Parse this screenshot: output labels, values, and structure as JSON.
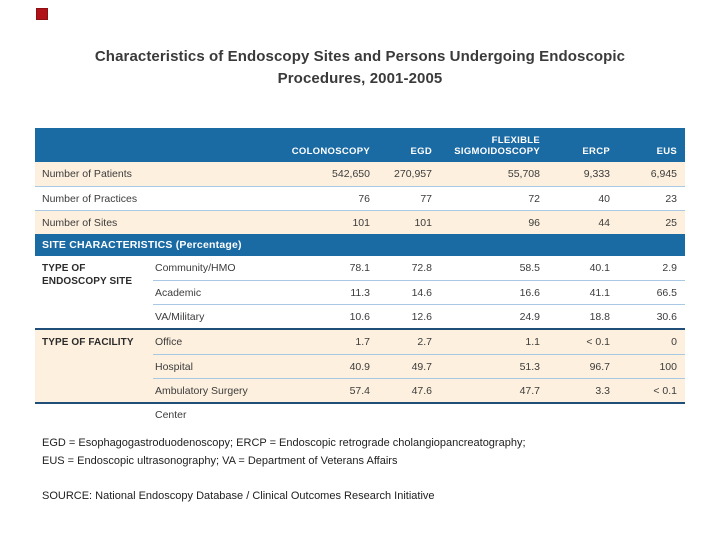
{
  "accent": {
    "color": "#b01218"
  },
  "title": {
    "line1": "Characteristics of Endoscopy Sites and Persons Undergoing Endoscopic",
    "line2": "Procedures, 2001-2005"
  },
  "table": {
    "columns": [
      "COLONOSCOPY",
      "EGD",
      "FLEXIBLE SIGMOIDOSCOPY",
      "ERCP",
      "EUS"
    ],
    "summary_rows": [
      {
        "label": "Number of Patients",
        "values": [
          "542,650",
          "270,957",
          "55,708",
          "9,333",
          "6,945"
        ]
      },
      {
        "label": "Number of Practices",
        "values": [
          "76",
          "77",
          "72",
          "40",
          "23"
        ]
      },
      {
        "label": "Number of Sites",
        "values": [
          "101",
          "101",
          "96",
          "44",
          "25"
        ]
      }
    ],
    "band_label": "SITE CHARACTERISTICS (Percentage)",
    "groups": [
      {
        "label": "TYPE OF ENDOSCOPY SITE",
        "rows": [
          {
            "label": "Community/HMO",
            "values": [
              "78.1",
              "72.8",
              "58.5",
              "40.1",
              "2.9"
            ]
          },
          {
            "label": "Academic",
            "values": [
              "11.3",
              "14.6",
              "16.6",
              "41.1",
              "66.5"
            ]
          },
          {
            "label": "VA/Military",
            "values": [
              "10.6",
              "12.6",
              "24.9",
              "18.8",
              "30.6"
            ]
          }
        ]
      },
      {
        "label": "TYPE OF FACILITY",
        "rows": [
          {
            "label": "Office",
            "values": [
              "1.7",
              "2.7",
              "1.1",
              "< 0.1",
              "0"
            ]
          },
          {
            "label": "Hospital",
            "values": [
              "40.9",
              "49.7",
              "51.3",
              "96.7",
              "100"
            ]
          },
          {
            "label": "Ambulatory Surgery Center",
            "values": [
              "57.4",
              "47.6",
              "47.7",
              "3.3",
              "< 0.1"
            ]
          }
        ]
      }
    ]
  },
  "footnotes": {
    "abbrev_line1": "EGD = Esophagogastroduodenoscopy; ERCP = Endoscopic retrograde cholangiopancreatography;",
    "abbrev_line2": "EUS = Endoscopic ultrasonography; VA = Department of Veterans Affairs",
    "source": "SOURCE: National Endoscopy Database / Clinical Outcomes Research Initiative"
  },
  "colors": {
    "header_blue": "#1a6aa3",
    "peach_band": "#fdf0de",
    "row_divider": "#a9c8e3",
    "section_divider": "#1f4e79",
    "accent_red": "#b01218"
  }
}
